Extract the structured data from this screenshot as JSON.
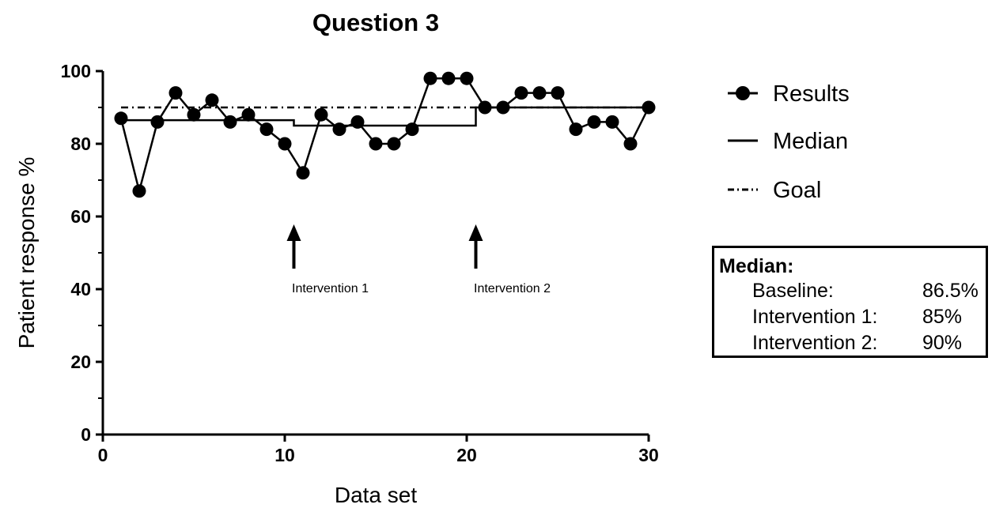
{
  "chart_data": {
    "type": "line",
    "title": "Question 3",
    "xlabel": "Data set",
    "ylabel": "Patient response %",
    "xlim": [
      0,
      30
    ],
    "ylim": [
      0,
      100
    ],
    "x_ticks": [
      0,
      10,
      20,
      30
    ],
    "y_ticks": [
      0,
      20,
      40,
      60,
      80,
      100
    ],
    "grid": false,
    "legend_position": "right",
    "series": [
      {
        "name": "Results",
        "style": "line-with-markers",
        "x": [
          1,
          2,
          3,
          4,
          5,
          6,
          7,
          8,
          9,
          10,
          11,
          12,
          13,
          14,
          15,
          16,
          17,
          18,
          19,
          20,
          21,
          22,
          23,
          24,
          25,
          26,
          27,
          28,
          29,
          30
        ],
        "values": [
          87,
          67,
          86,
          94,
          88,
          92,
          86,
          88,
          84,
          80,
          72,
          88,
          84,
          86,
          80,
          80,
          84,
          98,
          98,
          98,
          90,
          90,
          94,
          94,
          94,
          84,
          86,
          86,
          80,
          90
        ]
      },
      {
        "name": "Median",
        "style": "step",
        "segments": [
          {
            "x_start": 1,
            "x_end": 10.5,
            "value": 86.5
          },
          {
            "x_start": 10.5,
            "x_end": 20.5,
            "value": 85
          },
          {
            "x_start": 20.5,
            "x_end": 30,
            "value": 90
          }
        ]
      },
      {
        "name": "Goal",
        "style": "dash-dot",
        "x_start": 1,
        "x_end": 30,
        "value": 90
      }
    ],
    "annotations": [
      {
        "label": "Intervention 1",
        "x": 10.5
      },
      {
        "label": "Intervention 2",
        "x": 20.5
      }
    ],
    "summary_box": {
      "heading": "Median:",
      "rows": [
        {
          "label": "Baseline:",
          "value": "86.5%"
        },
        {
          "label": "Intervention 1:",
          "value": "85%"
        },
        {
          "label": "Intervention 2:",
          "value": "90%"
        }
      ]
    }
  }
}
